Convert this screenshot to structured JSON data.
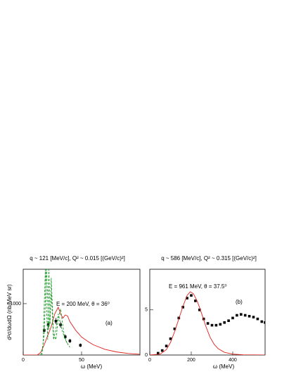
{
  "chart_data": [
    {
      "type": "line",
      "title": "q ~ 121 [MeV/c], Q² ~ 0.015 [(GeV/c)²]",
      "xlabel": "ω (MeV)",
      "ylabel": "d²σ/dωdΩ (nb/MeV sr)",
      "annotations": [
        "E = 200 MeV, θ = 36⁰",
        "(a)"
      ],
      "xlim": [
        0,
        100
      ],
      "xticks": [
        0,
        50
      ],
      "ylim": [
        0,
        1670
      ],
      "yticks": [
        1000
      ],
      "series": [
        {
          "style": "points",
          "color": "#000000",
          "x": [
            18,
            21.4,
            28,
            32,
            36,
            40,
            49
          ],
          "values": [
            480,
            590,
            660,
            590,
            355,
            275,
            190
          ],
          "errors": [
            60,
            60,
            60,
            55,
            45,
            40,
            35
          ]
        },
        {
          "style": "line",
          "color": "#e0201c",
          "x": [
            0,
            12,
            15,
            18,
            21,
            24,
            27,
            30,
            32,
            34,
            36,
            38,
            40,
            45,
            50,
            55,
            60,
            70,
            80,
            90,
            100
          ],
          "values": [
            0,
            0,
            50,
            200,
            380,
            550,
            800,
            930,
            800,
            720,
            780,
            760,
            650,
            480,
            350,
            270,
            200,
            110,
            60,
            30,
            15
          ]
        },
        {
          "style": "dashed",
          "color": "#1f9a2a",
          "x": [
            15,
            17,
            19,
            20,
            21,
            22,
            23,
            24,
            26,
            28,
            30,
            32,
            35,
            38
          ],
          "values": [
            0,
            200,
            1700,
            900,
            300,
            1700,
            600,
            1500,
            400,
            300,
            700,
            900,
            400,
            200
          ]
        },
        {
          "style": "dashed",
          "color": "#1f9a2a",
          "x": [
            16,
            18,
            20,
            22,
            24,
            26,
            28,
            30,
            33,
            36,
            40
          ],
          "values": [
            0,
            400,
            1700,
            500,
            1200,
            300,
            500,
            800,
            500,
            300,
            150
          ]
        }
      ]
    },
    {
      "type": "line",
      "title": "q ~ 586 [MeV/c], Q² ~ 0.315 [(GeV/c)²]",
      "xlabel": "ω (MeV)",
      "annotations": [
        "E = 961 MeV, θ = 37.5⁰",
        "(b)"
      ],
      "xlim": [
        0,
        556
      ],
      "xticks": [
        0,
        200,
        400
      ],
      "ylim": [
        0,
        9.5
      ],
      "yticks": [
        0,
        5
      ],
      "series": [
        {
          "style": "points",
          "color": "#000000",
          "x": [
            40,
            60,
            80,
            100,
            120,
            140,
            160,
            180,
            200,
            220,
            240,
            260,
            280,
            300,
            320,
            340,
            360,
            380,
            400,
            420,
            440,
            460,
            480,
            500,
            520,
            540,
            556
          ],
          "values": [
            0.2,
            0.5,
            1.0,
            1.8,
            2.9,
            4.1,
            5.3,
            6.3,
            6.6,
            6.0,
            5.0,
            4.0,
            3.5,
            3.3,
            3.3,
            3.4,
            3.6,
            3.8,
            4.1,
            4.4,
            4.5,
            4.4,
            4.3,
            4.2,
            4.0,
            3.7,
            3.6
          ]
        },
        {
          "style": "line",
          "color": "#e0201c",
          "x": [
            0,
            50,
            80,
            100,
            120,
            140,
            160,
            180,
            195,
            210,
            230,
            250,
            270,
            290,
            310,
            330,
            360,
            400,
            450,
            556
          ],
          "values": [
            0,
            0.1,
            0.6,
            1.4,
            2.6,
            4.0,
            5.4,
            6.6,
            7.0,
            6.8,
            5.9,
            4.6,
            3.2,
            2.0,
            1.2,
            0.7,
            0.3,
            0.1,
            0.02,
            0
          ]
        }
      ]
    }
  ]
}
